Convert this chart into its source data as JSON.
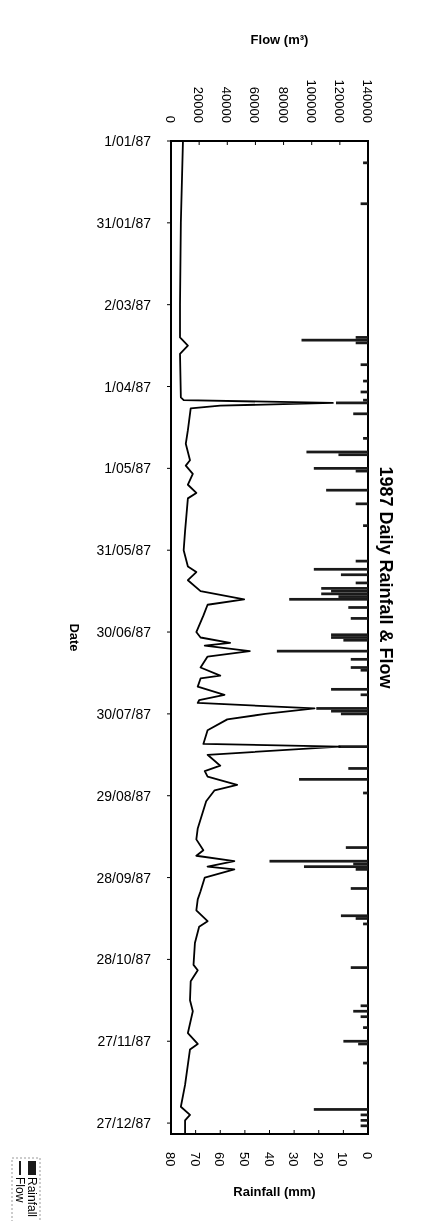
{
  "chart_data": {
    "type": "line",
    "orientation": "horizontal",
    "title": "1987 Daily Rainfall & Flow",
    "ylabel": "Date",
    "x2label": "Flow (m³)",
    "xlabel": "Rainfall (mm)",
    "ylim": [
      "1987-12-31",
      "1987-01-01"
    ],
    "yticks": [
      {
        "value": "1987-01-01",
        "label": "1/01/87"
      },
      {
        "value": "1987-01-31",
        "label": "31/01/87"
      },
      {
        "value": "1987-03-02",
        "label": "2/03/87"
      },
      {
        "value": "1987-04-01",
        "label": "1/04/87"
      },
      {
        "value": "1987-05-01",
        "label": "1/05/87"
      },
      {
        "value": "1987-05-31",
        "label": "31/05/87"
      },
      {
        "value": "1987-06-30",
        "label": "30/06/87"
      },
      {
        "value": "1987-07-30",
        "label": "30/07/87"
      },
      {
        "value": "1987-08-29",
        "label": "29/08/87"
      },
      {
        "value": "1987-09-28",
        "label": "28/09/87"
      },
      {
        "value": "1987-10-28",
        "label": "28/10/87"
      },
      {
        "value": "1987-11-27",
        "label": "27/11/87"
      },
      {
        "value": "1987-12-27",
        "label": "27/12/87"
      }
    ],
    "x2lim": [
      0,
      140000
    ],
    "x2ticks": [
      0,
      20000,
      40000,
      60000,
      80000,
      100000,
      120000,
      140000
    ],
    "xlim": [
      80,
      0
    ],
    "xticks": [
      80,
      70,
      60,
      50,
      40,
      30,
      20,
      10,
      0
    ],
    "legend": "bottom left",
    "series": [
      {
        "name": "Rainfall",
        "type": "bar",
        "color": "#1a1a1a",
        "x": [
          "1987-01-09",
          "1987-01-24",
          "1987-03-14",
          "1987-03-15",
          "1987-03-16",
          "1987-03-24",
          "1987-03-30",
          "1987-04-03",
          "1987-04-06",
          "1987-04-07",
          "1987-04-11",
          "1987-04-20",
          "1987-04-25",
          "1987-04-26",
          "1987-05-01",
          "1987-05-02",
          "1987-05-09",
          "1987-05-14",
          "1987-05-22",
          "1987-06-04",
          "1987-06-07",
          "1987-06-09",
          "1987-06-12",
          "1987-06-14",
          "1987-06-15",
          "1987-06-16",
          "1987-06-17",
          "1987-06-18",
          "1987-06-21",
          "1987-06-25",
          "1987-07-01",
          "1987-07-02",
          "1987-07-03",
          "1987-07-07",
          "1987-07-10",
          "1987-07-13",
          "1987-07-14",
          "1987-07-21",
          "1987-07-23",
          "1987-07-28",
          "1987-07-29",
          "1987-07-30",
          "1987-08-11",
          "1987-08-19",
          "1987-08-23",
          "1987-08-28",
          "1987-09-17",
          "1987-09-22",
          "1987-09-23",
          "1987-09-24",
          "1987-09-25",
          "1987-10-02",
          "1987-10-12",
          "1987-10-13",
          "1987-10-15",
          "1987-10-31",
          "1987-11-14",
          "1987-11-16",
          "1987-11-18",
          "1987-11-22",
          "1987-11-27",
          "1987-11-28",
          "1987-12-05",
          "1987-12-22",
          "1987-12-24",
          "1987-12-26",
          "1987-12-28"
        ],
        "values": [
          2,
          3,
          5,
          27,
          5,
          3,
          2,
          3,
          2,
          13,
          6,
          2,
          25,
          12,
          22,
          5,
          17,
          5,
          2,
          5,
          22,
          11,
          5,
          19,
          15,
          19,
          12,
          32,
          8,
          7,
          15,
          15,
          10,
          37,
          7,
          7,
          3,
          15,
          3,
          21,
          15,
          11,
          12,
          8,
          28,
          2,
          9,
          40,
          6,
          26,
          5,
          7,
          11,
          5,
          2,
          7,
          3,
          6,
          3,
          2,
          10,
          4,
          2,
          22,
          3,
          3,
          3
        ]
      },
      {
        "name": "Flow",
        "axis": "x2",
        "color": "#000000",
        "x": [
          "1987-01-01",
          "1987-01-31",
          "1987-03-02",
          "1987-03-14",
          "1987-03-17",
          "1987-03-20",
          "1987-04-05",
          "1987-04-06",
          "1987-04-07",
          "1987-04-08",
          "1987-04-09",
          "1987-04-17",
          "1987-04-22",
          "1987-04-28",
          "1987-04-30",
          "1987-05-03",
          "1987-05-07",
          "1987-05-10",
          "1987-05-12",
          "1987-05-24",
          "1987-05-31",
          "1987-06-06",
          "1987-06-08",
          "1987-06-11",
          "1987-06-15",
          "1987-06-18",
          "1987-06-20",
          "1987-06-24",
          "1987-06-30",
          "1987-07-02",
          "1987-07-04",
          "1987-07-05",
          "1987-07-07",
          "1987-07-09",
          "1987-07-13",
          "1987-07-16",
          "1987-07-17",
          "1987-07-20",
          "1987-07-23",
          "1987-07-25",
          "1987-07-26",
          "1987-07-28",
          "1987-07-30",
          "1987-08-01",
          "1987-08-05",
          "1987-08-10",
          "1987-08-11",
          "1987-08-14",
          "1987-08-18",
          "1987-08-20",
          "1987-08-22",
          "1987-08-25",
          "1987-08-27",
          "1987-08-31",
          "1987-09-10",
          "1987-09-14",
          "1987-09-18",
          "1987-09-20",
          "1987-09-22",
          "1987-09-24",
          "1987-09-25",
          "1987-09-28",
          "1987-10-03",
          "1987-10-06",
          "1987-10-10",
          "1987-10-14",
          "1987-10-16",
          "1987-10-22",
          "1987-10-30",
          "1987-11-01",
          "1987-11-05",
          "1987-11-12",
          "1987-11-16",
          "1987-11-24",
          "1987-11-28",
          "1987-11-30",
          "1987-12-13",
          "1987-12-21",
          "1987-12-24",
          "1987-12-26",
          "1987-12-31"
        ],
        "values": [
          8500,
          7000,
          6400,
          6400,
          12000,
          6400,
          7000,
          9000,
          115000,
          35000,
          14000,
          12000,
          10500,
          13500,
          10500,
          15500,
          12000,
          18000,
          12000,
          10000,
          9000,
          12000,
          18000,
          12000,
          21000,
          52000,
          26000,
          23000,
          18000,
          21000,
          42000,
          24000,
          56000,
          26000,
          21000,
          35000,
          21000,
          19000,
          38000,
          20000,
          19000,
          102000,
          67000,
          40000,
          26000,
          23000,
          120000,
          26000,
          35000,
          24000,
          26000,
          47000,
          31000,
          25000,
          19000,
          18000,
          23000,
          18000,
          45000,
          26000,
          45000,
          24000,
          21000,
          19000,
          18000,
          26000,
          20000,
          17000,
          16000,
          19000,
          14000,
          13500,
          15500,
          12000,
          19000,
          13500,
          10000,
          7000,
          13500,
          10000,
          10000
        ]
      }
    ]
  }
}
